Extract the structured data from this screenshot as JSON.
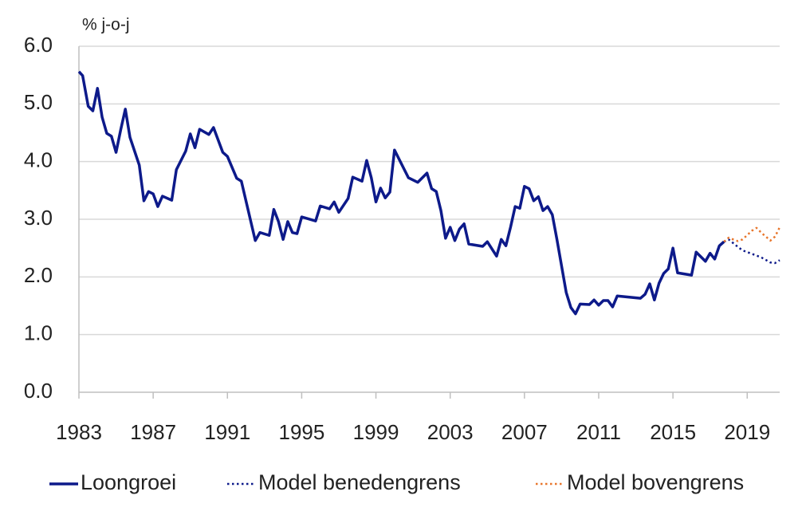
{
  "chart_data": {
    "type": "line",
    "y_label": "% j-o-j",
    "xlim": [
      1983,
      2020.75
    ],
    "xticks": [
      1983,
      1987,
      1991,
      1995,
      1999,
      2003,
      2007,
      2011,
      2015,
      2019
    ],
    "ylim": [
      0,
      6
    ],
    "yticks": [
      {
        "value": 0,
        "label": "0.0"
      },
      {
        "value": 1,
        "label": "1.0"
      },
      {
        "value": 2,
        "label": "2.0"
      },
      {
        "value": 3,
        "label": "3.0"
      },
      {
        "value": 4,
        "label": "4.0"
      },
      {
        "value": 5,
        "label": "5.0"
      },
      {
        "value": 6,
        "label": "6.0"
      }
    ],
    "grid": true,
    "legend": "bottom",
    "series": [
      {
        "name": "Loongroei",
        "color": "#0d1a8a",
        "style": "solid",
        "x": [
          1983.0,
          1983.2,
          1983.5,
          1983.75,
          1984.0,
          1984.25,
          1984.5,
          1984.75,
          1985.0,
          1985.25,
          1985.5,
          1985.75,
          1986.25,
          1986.5,
          1986.75,
          1987.0,
          1987.25,
          1987.5,
          1988.0,
          1988.25,
          1988.75,
          1989.0,
          1989.25,
          1989.5,
          1990.0,
          1990.25,
          1990.75,
          1991.0,
          1991.5,
          1991.75,
          1992.5,
          1992.75,
          1993.25,
          1993.5,
          1993.75,
          1994.0,
          1994.25,
          1994.5,
          1994.75,
          1995.0,
          1995.75,
          1996.0,
          1996.5,
          1996.75,
          1997.0,
          1997.5,
          1997.75,
          1998.25,
          1998.5,
          1998.75,
          1999.0,
          1999.25,
          1999.5,
          1999.75,
          2000.0,
          2000.75,
          2001.25,
          2001.75,
          2002.0,
          2002.25,
          2002.5,
          2002.75,
          2003.0,
          2003.25,
          2003.5,
          2003.75,
          2004.0,
          2004.75,
          2005.0,
          2005.5,
          2005.75,
          2006.0,
          2006.25,
          2006.5,
          2006.75,
          2007.0,
          2007.25,
          2007.5,
          2007.75,
          2008.0,
          2008.25,
          2008.5,
          2008.75,
          2009.25,
          2009.5,
          2009.75,
          2010.0,
          2010.5,
          2010.75,
          2011.0,
          2011.25,
          2011.5,
          2011.75,
          2012.0,
          2013.25,
          2013.5,
          2013.75,
          2014.0,
          2014.25,
          2014.5,
          2014.75,
          2015.0,
          2015.25,
          2016.0,
          2016.25,
          2016.75,
          2017.0,
          2017.25,
          2017.5,
          2017.75
        ],
        "values": [
          5.56,
          5.49,
          4.96,
          4.88,
          5.27,
          4.77,
          4.49,
          4.44,
          4.16,
          4.55,
          4.91,
          4.42,
          3.94,
          3.32,
          3.48,
          3.44,
          3.22,
          3.4,
          3.33,
          3.86,
          4.18,
          4.48,
          4.24,
          4.56,
          4.47,
          4.59,
          4.16,
          4.09,
          3.71,
          3.66,
          2.63,
          2.77,
          2.72,
          3.17,
          2.96,
          2.65,
          2.96,
          2.77,
          2.75,
          3.04,
          2.97,
          3.23,
          3.18,
          3.3,
          3.12,
          3.36,
          3.73,
          3.66,
          4.02,
          3.72,
          3.3,
          3.54,
          3.37,
          3.47,
          4.2,
          3.72,
          3.64,
          3.8,
          3.53,
          3.48,
          3.15,
          2.67,
          2.86,
          2.63,
          2.83,
          2.92,
          2.57,
          2.53,
          2.61,
          2.36,
          2.65,
          2.54,
          2.86,
          3.22,
          3.19,
          3.57,
          3.53,
          3.32,
          3.39,
          3.15,
          3.22,
          3.08,
          2.65,
          1.73,
          1.47,
          1.36,
          1.53,
          1.52,
          1.6,
          1.51,
          1.59,
          1.59,
          1.48,
          1.67,
          1.63,
          1.7,
          1.88,
          1.6,
          1.89,
          2.06,
          2.14,
          2.5,
          2.07,
          2.03,
          2.43,
          2.27,
          2.41,
          2.31,
          2.54,
          2.61
        ]
      },
      {
        "name": "Model benedengrens",
        "color": "#0d1a8a",
        "style": "dotted",
        "x": [
          2017.75,
          2018.0,
          2018.5,
          2018.75,
          2019.25,
          2019.75,
          2020.25,
          2020.5,
          2020.75
        ],
        "values": [
          2.61,
          2.65,
          2.52,
          2.46,
          2.4,
          2.34,
          2.25,
          2.24,
          2.29
        ]
      },
      {
        "name": "Model bovengrens",
        "color": "#e8762c",
        "style": "dotted",
        "x": [
          2017.75,
          2018.0,
          2018.5,
          2018.75,
          2019.25,
          2019.5,
          2019.75,
          2020.25,
          2020.5,
          2020.75
        ],
        "values": [
          2.61,
          2.68,
          2.62,
          2.65,
          2.8,
          2.85,
          2.77,
          2.63,
          2.7,
          2.86
        ]
      }
    ]
  }
}
